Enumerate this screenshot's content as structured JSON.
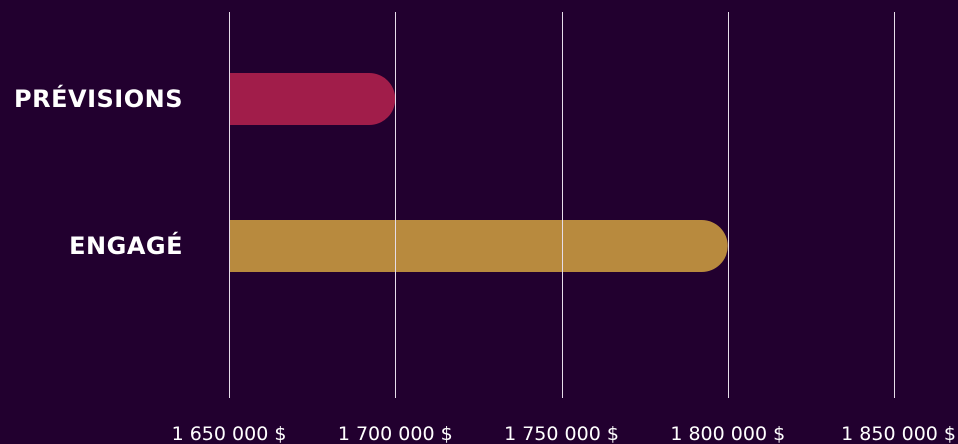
{
  "chart_data": {
    "type": "bar",
    "orientation": "horizontal",
    "title": "",
    "xlabel": "",
    "ylabel": "",
    "categories": [
      "PRÉVISIONS",
      "ENGAGÉ"
    ],
    "values": [
      1700000,
      1800000
    ],
    "bar_colors": [
      "#a11d4a",
      "#b88a3e"
    ],
    "xlim": [
      1650000,
      1850000
    ],
    "x_ticks": [
      1650000,
      1700000,
      1750000,
      1800000,
      1850000
    ],
    "x_tick_labels": [
      "1 650 000 $",
      "1 700 000 $",
      "1 750 000 $",
      "1 800 000 $",
      "1 850 000 $"
    ],
    "grid": true,
    "legend": "none"
  },
  "colors": {
    "background": "#22002f",
    "gridline": "#e6dde9",
    "text": "#ffffff"
  }
}
